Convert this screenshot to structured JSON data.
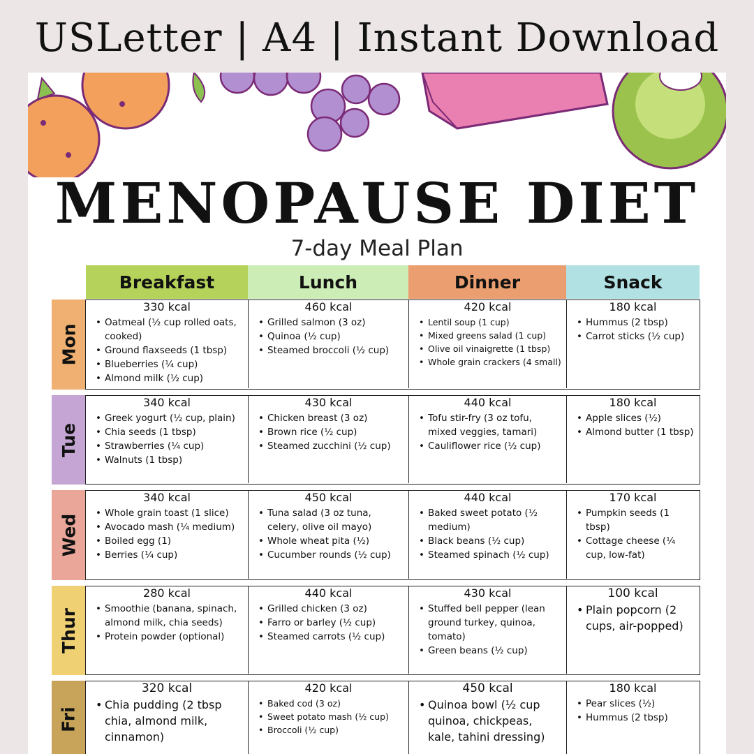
{
  "banner": "USLetter | A4 | Instant Download",
  "title": "MENOPAUSE DIET",
  "subtitle": "7-day Meal Plan",
  "colors": {
    "breakfast": "#b5d35a",
    "lunch": "#cdedb7",
    "dinner": "#eb9e6f",
    "snack": "#b1e1e3",
    "mon": "#efb071",
    "tue": "#c4a5d3",
    "wed": "#e9a699",
    "thu": "#efd174",
    "fri": "#c7a45a"
  },
  "headers": {
    "breakfast": "Breakfast",
    "lunch": "Lunch",
    "dinner": "Dinner",
    "snack": "Snack"
  },
  "days": [
    {
      "label": "Mon",
      "meals": [
        {
          "kcal": "330 kcal",
          "items": [
            "Oatmeal (½ cup rolled oats, cooked)",
            "Ground flaxseeds (1 tbsp)",
            "Blueberries (¼ cup)",
            "Almond milk (½ cup)"
          ]
        },
        {
          "kcal": "460 kcal",
          "items": [
            "Grilled salmon (3 oz)",
            "Quinoa (½ cup)",
            "Steamed broccoli (½ cup)"
          ]
        },
        {
          "kcal": "420 kcal",
          "items": [
            "Lentil soup (1 cup)",
            "Mixed greens salad (1 cup)",
            "Olive oil vinaigrette (1 tbsp)",
            "Whole grain crackers (4 small)"
          ]
        },
        {
          "kcal": "180 kcal",
          "items": [
            "Hummus (2 tbsp)",
            "Carrot sticks (½ cup)"
          ]
        }
      ]
    },
    {
      "label": "Tue",
      "meals": [
        {
          "kcal": "340 kcal",
          "items": [
            "Greek yogurt (½ cup, plain)",
            "Chia seeds (1 tbsp)",
            "Strawberries (¼ cup)",
            "Walnuts (1 tbsp)"
          ]
        },
        {
          "kcal": "430 kcal",
          "items": [
            "Chicken breast (3 oz)",
            "Brown rice (½ cup)",
            "Steamed zucchini (½ cup)"
          ]
        },
        {
          "kcal": "440 kcal",
          "items": [
            "Tofu stir-fry (3 oz tofu, mixed veggies, tamari)",
            "Cauliflower rice (½ cup)"
          ]
        },
        {
          "kcal": "180 kcal",
          "items": [
            "Apple slices (½)",
            "Almond butter (1 tbsp)"
          ]
        }
      ]
    },
    {
      "label": "Wed",
      "meals": [
        {
          "kcal": "340 kcal",
          "items": [
            "Whole grain toast (1 slice)",
            "Avocado mash (¼ medium)",
            "Boiled egg (1)",
            "Berries (¼ cup)"
          ]
        },
        {
          "kcal": "450 kcal",
          "items": [
            "Tuna salad (3 oz tuna, celery, olive oil mayo)",
            "Whole wheat pita (½)",
            "Cucumber rounds (½ cup)"
          ]
        },
        {
          "kcal": "440 kcal",
          "items": [
            "Baked sweet potato (½ medium)",
            "Black beans (½ cup)",
            "Steamed spinach (½ cup)"
          ]
        },
        {
          "kcal": "170 kcal",
          "items": [
            "Pumpkin seeds (1 tbsp)",
            "Cottage cheese (¼ cup, low-fat)"
          ]
        }
      ]
    },
    {
      "label": "Thur",
      "meals": [
        {
          "kcal": "280 kcal",
          "items": [
            "Smoothie (banana, spinach, almond milk, chia seeds)",
            "Protein powder (optional)"
          ]
        },
        {
          "kcal": "440 kcal",
          "items": [
            "Grilled chicken (3 oz)",
            "Farro or barley (½ cup)",
            "Steamed carrots (½ cup)"
          ]
        },
        {
          "kcal": "430 kcal",
          "items": [
            "Stuffed bell pepper (lean ground turkey, quinoa, tomato)",
            "Green beans (½ cup)"
          ]
        },
        {
          "kcal": "100 kcal",
          "items": [
            "Plain popcorn (2 cups, air-popped)"
          ]
        }
      ]
    },
    {
      "label": "Fri",
      "meals": [
        {
          "kcal": "320 kcal",
          "items": [
            "Chia pudding (2 tbsp chia, almond milk, cinnamon)"
          ]
        },
        {
          "kcal": "420 kcal",
          "items": [
            "Baked cod (3 oz)",
            "Sweet potato mash (½ cup)",
            "Broccoli (½ cup)"
          ]
        },
        {
          "kcal": "450 kcal",
          "items": [
            "Quinoa bowl (½ cup quinoa, chickpeas, kale, tahini dressing)"
          ]
        },
        {
          "kcal": "180 kcal",
          "items": [
            "Pear slices (½)",
            "Hummus (2 tbsp)"
          ]
        }
      ]
    }
  ]
}
